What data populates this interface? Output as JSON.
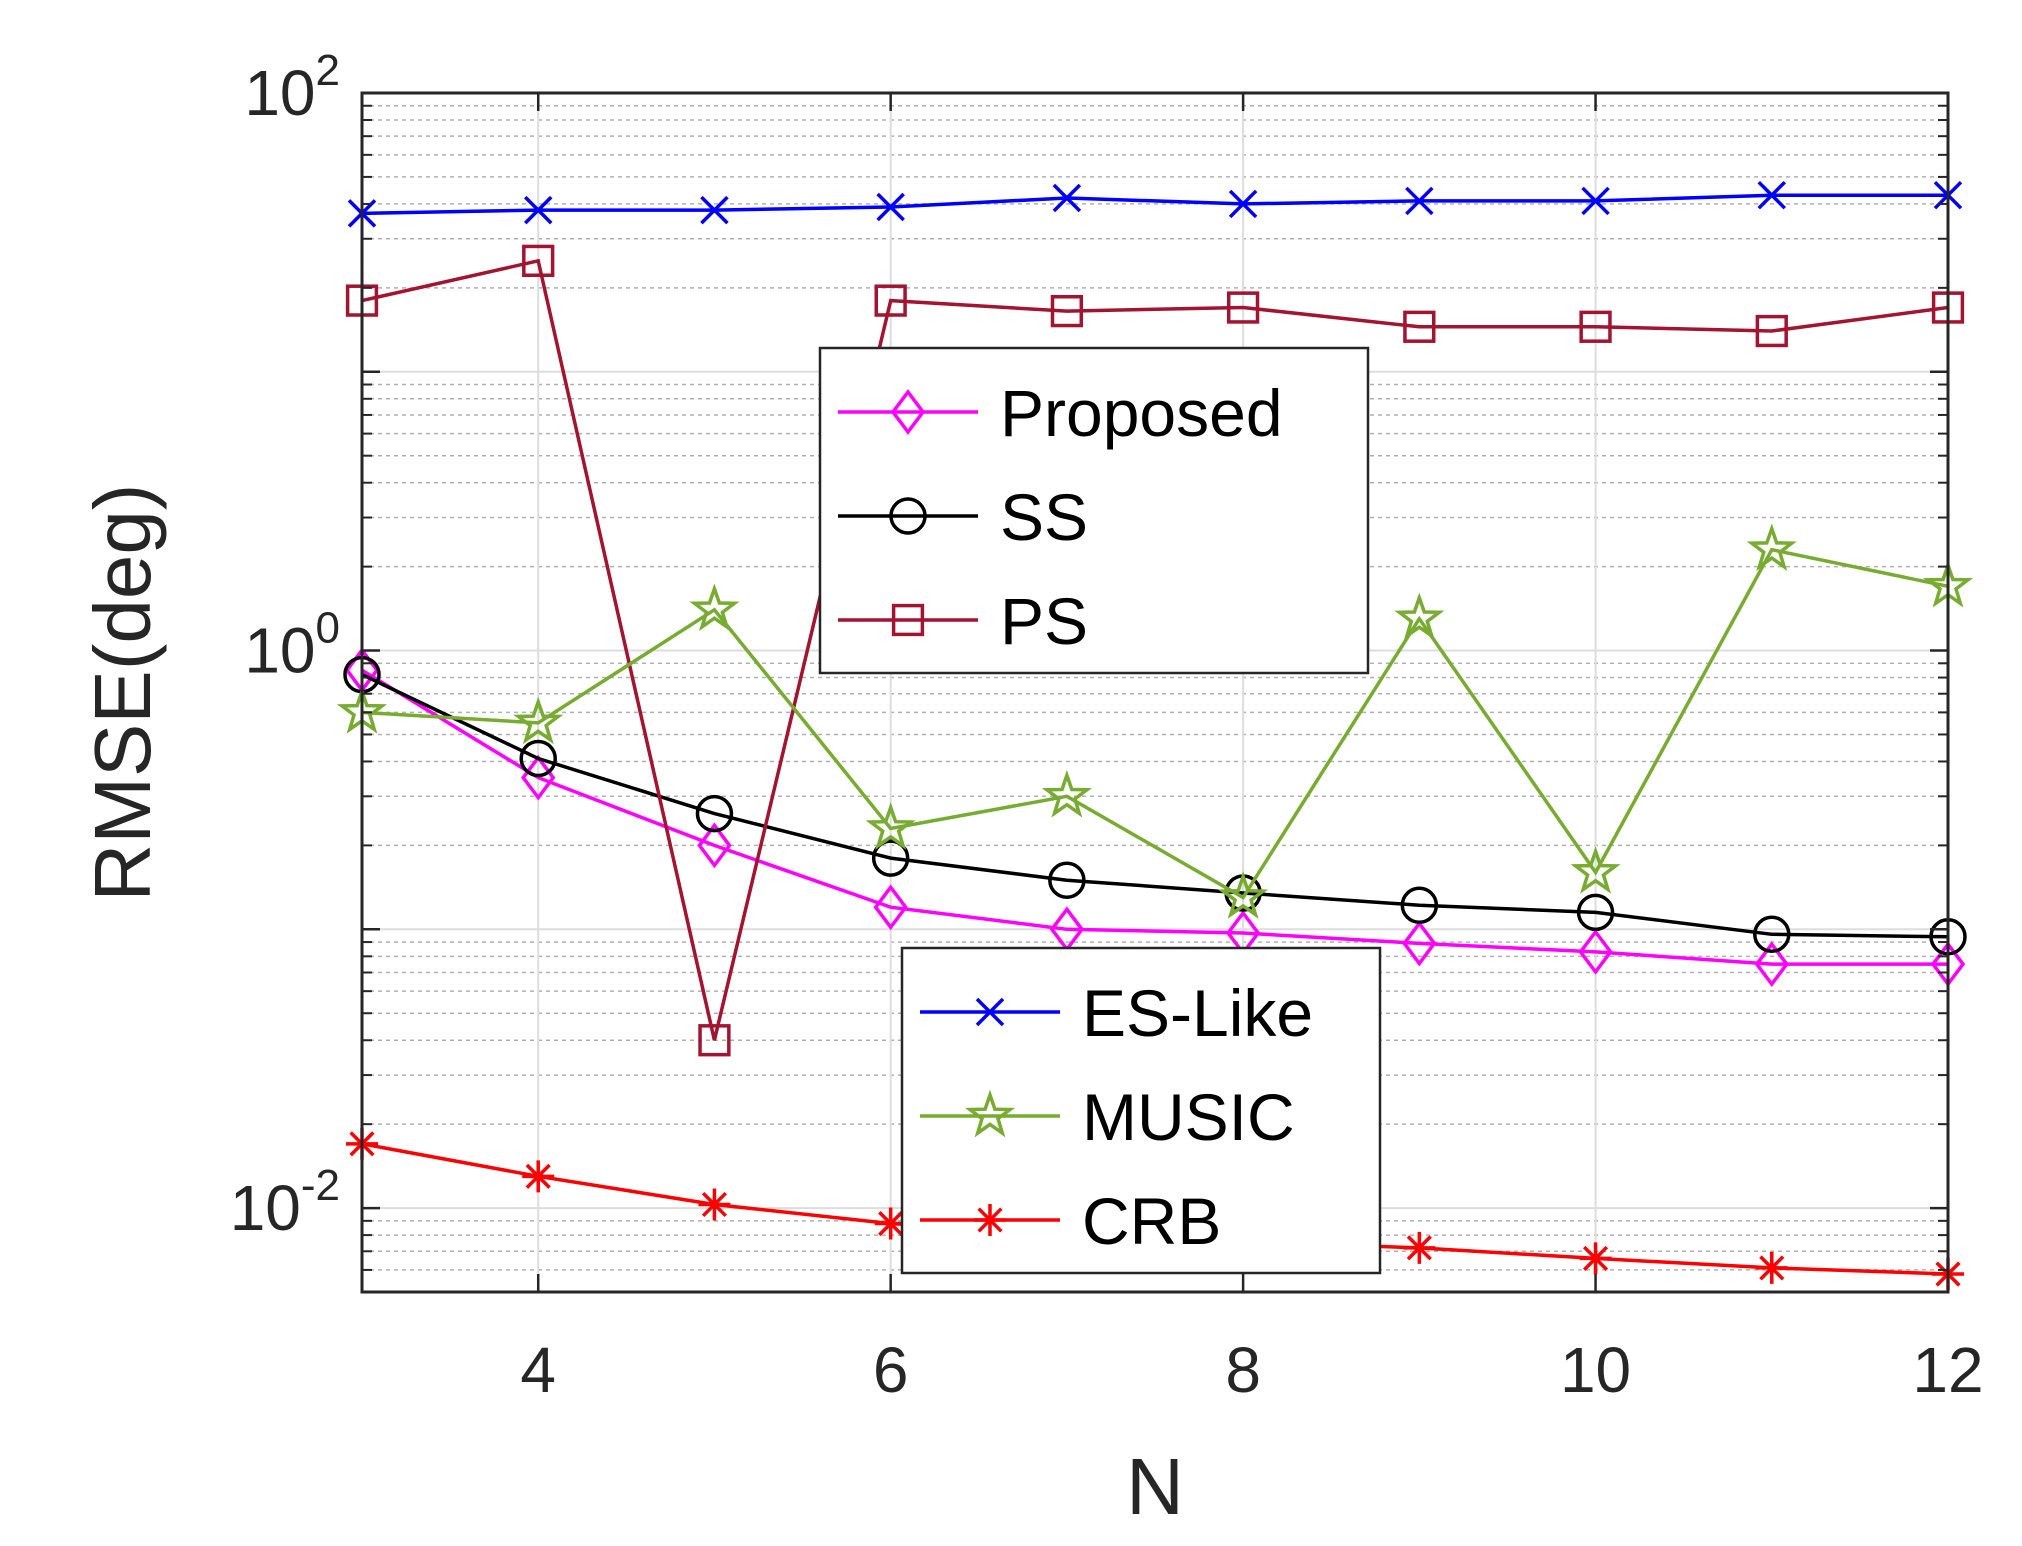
{
  "chart_data": {
    "type": "line",
    "title": "",
    "xlabel": "N",
    "ylabel": "RMSE(deg)",
    "xlim": [
      3,
      12
    ],
    "ylim": [
      0.005,
      100
    ],
    "yscale": "log",
    "xticks": [
      "4",
      "6",
      "8",
      "10",
      "12"
    ],
    "yticks": [
      {
        "base": "10",
        "exp": "-2",
        "value": 0.01
      },
      {
        "base": "10",
        "exp": "0",
        "value": 1
      },
      {
        "base": "10",
        "exp": "2",
        "value": 100
      }
    ],
    "grid": true,
    "x": [
      3,
      4,
      5,
      6,
      7,
      8,
      9,
      10,
      11,
      12
    ],
    "series": [
      {
        "name": "Proposed",
        "color": "#ff00ff",
        "marker": "diamond",
        "values": [
          0.85,
          0.35,
          0.2,
          0.12,
          0.1,
          0.097,
          0.089,
          0.083,
          0.075,
          0.075
        ]
      },
      {
        "name": "SS",
        "color": "#000000",
        "marker": "circle",
        "values": [
          0.82,
          0.41,
          0.26,
          0.18,
          0.15,
          0.135,
          0.122,
          0.115,
          0.096,
          0.094
        ]
      },
      {
        "name": "PS",
        "color": "#a2142f",
        "marker": "square",
        "values": [
          18,
          25,
          0.04,
          18,
          16.5,
          17,
          14.5,
          14.5,
          14,
          17
        ]
      },
      {
        "name": "ES-Like",
        "color": "#0000ff",
        "marker": "x",
        "values": [
          37,
          38,
          38,
          39,
          42,
          40,
          41,
          41,
          43,
          43
        ]
      },
      {
        "name": "MUSIC",
        "color": "#77ac30",
        "marker": "star",
        "values": [
          0.6,
          0.55,
          1.4,
          0.23,
          0.3,
          0.13,
          1.3,
          0.16,
          2.3,
          1.7
        ]
      },
      {
        "name": "CRB",
        "color": "#ff0000",
        "marker": "asterisk",
        "values": [
          0.017,
          0.013,
          0.0103,
          0.0088,
          0.0082,
          0.0076,
          0.0072,
          0.0066,
          0.0061,
          0.0058
        ]
      }
    ],
    "legends": [
      {
        "placement": "upper-middle",
        "series": [
          "Proposed",
          "SS",
          "PS"
        ]
      },
      {
        "placement": "lower-middle",
        "series": [
          "ES-Like",
          "MUSIC",
          "CRB"
        ]
      }
    ]
  }
}
